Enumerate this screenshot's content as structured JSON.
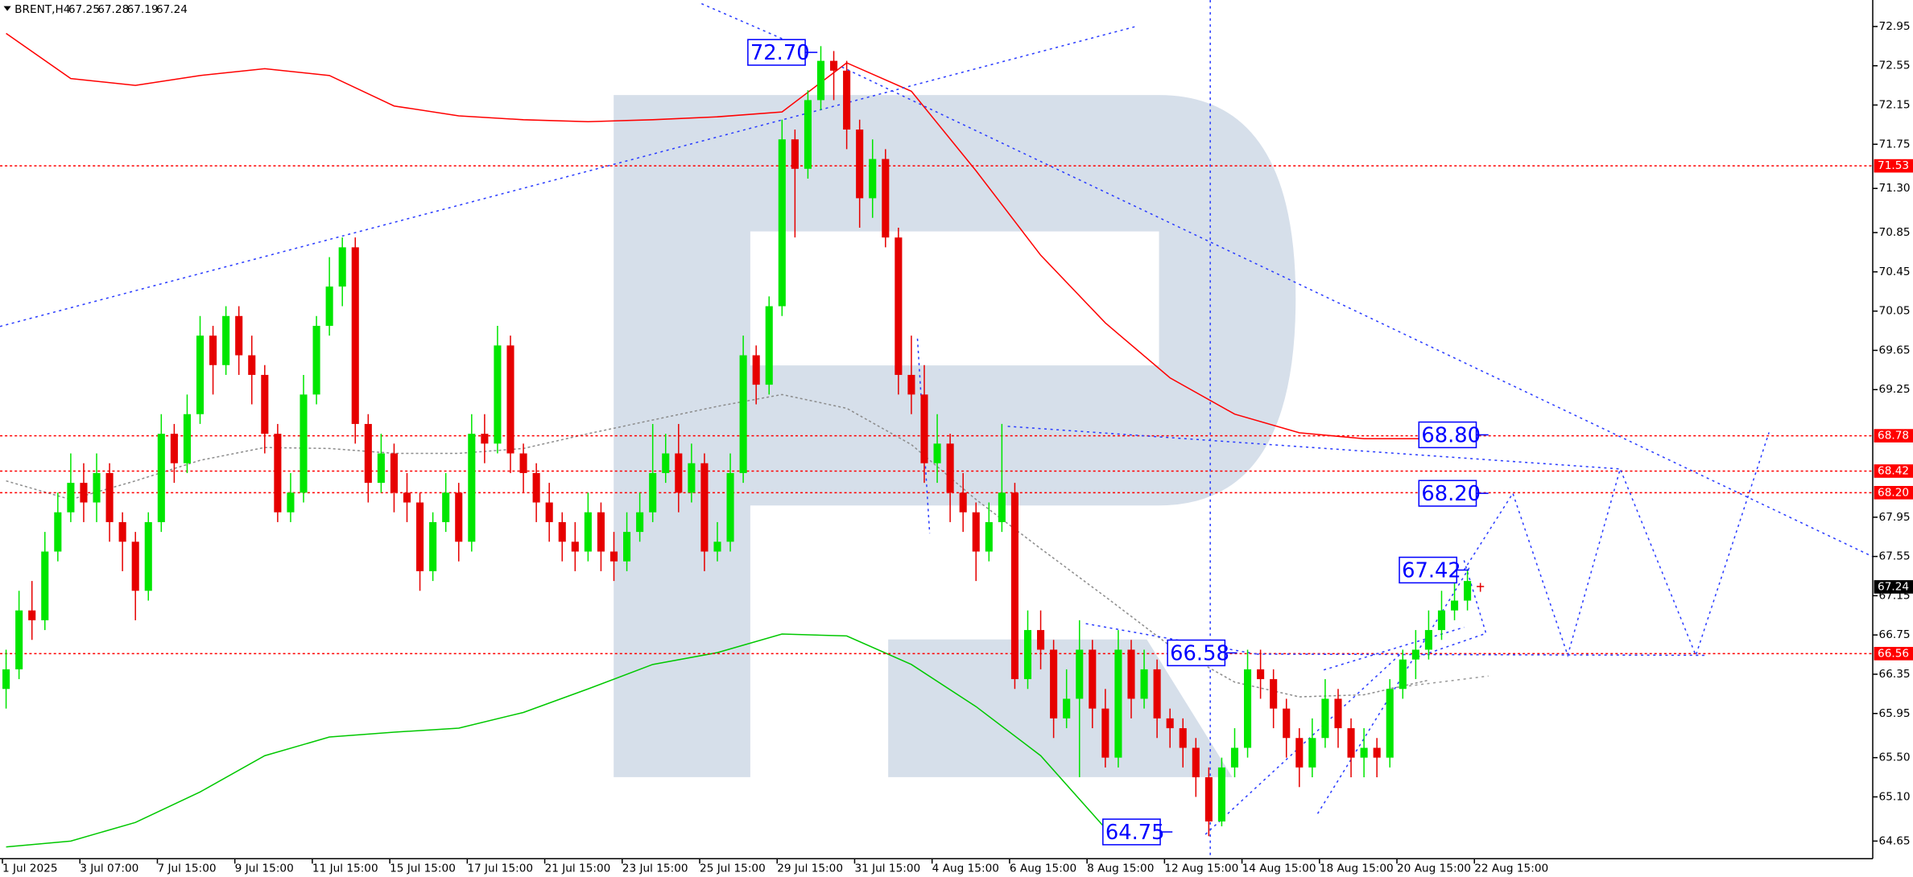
{
  "header": {
    "symbol": "BRENT,H4"
  },
  "chart_data": {
    "type": "candlestick",
    "bull_color": "#00e600",
    "bear_color": "#e60000",
    "open": [
      66.2,
      66.4,
      67.0,
      66.9,
      67.6,
      68.0,
      68.3,
      68.1,
      68.4,
      67.9,
      67.7,
      67.2,
      67.9,
      68.8,
      68.5,
      69.0,
      69.8,
      69.5,
      70.0,
      69.6,
      69.4,
      68.8,
      68.0,
      68.2,
      69.2,
      69.9,
      70.3,
      70.7,
      68.9,
      68.3,
      68.6,
      68.2,
      68.1,
      67.4,
      67.9,
      68.2,
      67.7,
      68.8,
      68.7,
      69.7,
      68.6,
      68.4,
      68.1,
      67.9,
      67.7,
      67.6,
      68.0,
      67.6,
      67.5,
      67.8,
      68.0,
      68.4,
      68.6,
      68.2,
      68.5,
      67.6,
      67.7,
      68.4,
      69.6,
      69.3,
      70.1,
      71.8,
      71.5,
      72.2,
      72.6,
      72.5,
      71.9,
      71.2,
      71.6,
      70.8,
      69.4,
      69.2,
      68.5,
      68.7,
      68.2,
      68.0,
      67.6,
      67.9,
      68.2,
      66.3,
      66.8,
      66.6,
      65.9,
      66.1,
      66.6,
      66.0,
      65.5,
      66.6,
      66.1,
      66.4,
      65.9,
      65.8,
      65.6,
      65.3,
      64.85,
      65.4,
      65.6,
      66.4,
      66.3,
      66.0,
      65.7,
      65.4,
      65.7,
      66.1,
      65.8,
      65.5,
      65.6,
      65.5,
      66.2,
      66.5,
      66.6,
      66.8,
      67.0,
      67.1,
      67.25
    ],
    "high": [
      66.6,
      67.2,
      67.3,
      67.8,
      68.2,
      68.6,
      68.5,
      68.6,
      68.5,
      68.0,
      67.8,
      68.0,
      69.0,
      68.9,
      69.2,
      70.0,
      69.9,
      70.1,
      70.1,
      69.8,
      69.5,
      68.9,
      68.4,
      69.4,
      70.0,
      70.6,
      70.8,
      70.8,
      69.0,
      68.8,
      68.7,
      68.4,
      68.2,
      68.0,
      68.4,
      68.3,
      69.0,
      69.0,
      69.9,
      69.8,
      68.7,
      68.5,
      68.3,
      68.0,
      67.9,
      68.2,
      68.1,
      67.8,
      68.0,
      68.2,
      68.9,
      68.8,
      68.9,
      68.7,
      68.6,
      67.9,
      68.6,
      69.8,
      69.7,
      70.2,
      72.0,
      71.9,
      72.3,
      72.75,
      72.7,
      72.6,
      72.0,
      71.8,
      71.7,
      70.9,
      69.8,
      69.5,
      69.0,
      68.8,
      68.4,
      68.1,
      68.1,
      68.9,
      68.3,
      67.0,
      67.0,
      66.7,
      66.4,
      66.9,
      66.7,
      66.2,
      66.8,
      66.7,
      66.6,
      66.5,
      66.0,
      65.9,
      65.7,
      65.4,
      65.5,
      65.8,
      66.6,
      66.6,
      66.4,
      66.1,
      65.8,
      65.9,
      66.3,
      66.2,
      65.9,
      65.8,
      65.7,
      66.3,
      66.6,
      66.8,
      67.0,
      67.2,
      67.3,
      67.42,
      67.28
    ],
    "low": [
      66.0,
      66.3,
      66.7,
      66.8,
      67.5,
      67.9,
      67.9,
      67.9,
      67.7,
      67.4,
      66.9,
      67.1,
      67.8,
      68.3,
      68.4,
      68.9,
      69.2,
      69.4,
      69.4,
      69.1,
      68.6,
      67.9,
      67.9,
      68.1,
      69.1,
      69.8,
      70.1,
      68.7,
      68.1,
      68.2,
      68.0,
      67.9,
      67.2,
      67.3,
      67.8,
      67.5,
      67.6,
      68.5,
      68.6,
      68.4,
      68.2,
      67.9,
      67.7,
      67.5,
      67.4,
      67.5,
      67.4,
      67.3,
      67.4,
      67.7,
      67.9,
      68.3,
      68.0,
      68.1,
      67.4,
      67.5,
      67.6,
      68.3,
      69.1,
      69.2,
      70.0,
      70.8,
      71.4,
      72.1,
      72.2,
      71.7,
      70.9,
      71.0,
      70.7,
      69.2,
      69.0,
      68.3,
      68.3,
      67.9,
      67.8,
      67.3,
      67.5,
      67.8,
      66.2,
      66.2,
      66.4,
      65.7,
      65.8,
      65.3,
      65.8,
      65.4,
      65.4,
      65.9,
      66.0,
      65.7,
      65.6,
      65.4,
      65.1,
      64.7,
      64.8,
      65.3,
      65.5,
      66.1,
      65.8,
      65.5,
      65.2,
      65.3,
      65.6,
      65.6,
      65.3,
      65.3,
      65.3,
      65.4,
      66.1,
      66.3,
      66.5,
      66.7,
      66.9,
      67.0,
      67.19
    ],
    "close": [
      66.4,
      67.0,
      66.9,
      67.6,
      68.0,
      68.3,
      68.1,
      68.4,
      67.9,
      67.7,
      67.2,
      67.9,
      68.8,
      68.5,
      69.0,
      69.8,
      69.5,
      70.0,
      69.6,
      69.4,
      68.8,
      68.0,
      68.2,
      69.2,
      69.9,
      70.3,
      70.7,
      68.9,
      68.3,
      68.6,
      68.2,
      68.1,
      67.4,
      67.9,
      68.2,
      67.7,
      68.8,
      68.7,
      69.7,
      68.6,
      68.4,
      68.1,
      67.9,
      67.7,
      67.6,
      68.0,
      67.6,
      67.5,
      67.8,
      68.0,
      68.4,
      68.6,
      68.2,
      68.5,
      67.6,
      67.7,
      68.4,
      69.6,
      69.3,
      70.1,
      71.8,
      71.5,
      72.2,
      72.6,
      72.5,
      71.9,
      71.2,
      71.6,
      70.8,
      69.4,
      69.2,
      68.5,
      68.7,
      68.2,
      68.0,
      67.6,
      67.9,
      68.2,
      66.3,
      66.8,
      66.6,
      65.9,
      66.1,
      66.6,
      66.0,
      65.5,
      66.6,
      66.1,
      66.4,
      65.9,
      65.8,
      65.6,
      65.3,
      64.85,
      65.4,
      65.6,
      66.4,
      66.3,
      66.0,
      65.7,
      65.4,
      65.7,
      66.1,
      65.8,
      65.5,
      65.6,
      65.5,
      66.2,
      66.5,
      66.6,
      66.8,
      67.0,
      67.1,
      67.3,
      67.24
    ],
    "x_labels": [
      "1 Jul 2025",
      "3 Jul 07:00",
      "7 Jul 15:00",
      "9 Jul 15:00",
      "11 Jul 15:00",
      "15 Jul 15:00",
      "17 Jul 15:00",
      "21 Jul 15:00",
      "23 Jul 15:00",
      "25 Jul 15:00",
      "29 Jul 15:00",
      "31 Jul 15:00",
      "4 Aug 15:00",
      "6 Aug 15:00",
      "8 Aug 15:00",
      "12 Aug 15:00",
      "14 Aug 15:00",
      "18 Aug 15:00",
      "20 Aug 15:00",
      "22 Aug 15:00"
    ],
    "ylim": [
      64.47,
      73.22
    ],
    "yticks": [
      72.95,
      72.55,
      72.15,
      71.75,
      {
        "value": 71.3,
        "label": "71.30"
      },
      70.85,
      70.45,
      70.05,
      69.65,
      69.25,
      67.95,
      67.55,
      67.15,
      66.75,
      66.35,
      65.95,
      {
        "value": 65.5,
        "label": "65.50"
      },
      {
        "value": 65.1,
        "label": "65.10"
      },
      64.65
    ],
    "levels": [
      {
        "value": 71.53,
        "color": "#ff0000"
      },
      {
        "value": 68.78,
        "color": "#ff0000"
      },
      {
        "value": 68.42,
        "color": "#ff0000"
      },
      {
        "value": 68.2,
        "label": "68.20",
        "color": "#ff0000"
      },
      {
        "value": 66.56,
        "color": "#ff0000"
      }
    ],
    "current_color": "#000000",
    "annotations": [
      "72.70",
      "68.80",
      "68.20",
      "67.42",
      "66.58",
      "64.75"
    ],
    "indicators": [
      {
        "color": "#ff0000",
        "values": [
          72.88,
          72.42,
          72.35,
          72.45,
          72.52,
          72.45,
          72.14,
          72.04,
          72.0,
          71.98,
          72.0,
          72.03,
          72.08,
          72.58,
          72.29,
          71.48,
          70.62,
          69.93,
          69.37,
          69.0,
          68.81,
          68.75,
          68.75
        ]
      },
      {
        "color": "#00c800",
        "values": [
          64.59,
          64.65,
          64.84,
          65.15,
          65.52,
          65.71,
          65.76,
          65.8,
          65.96,
          66.2,
          66.45,
          66.57,
          66.76,
          66.74,
          66.45,
          66.02,
          65.52,
          64.78,
          null,
          null,
          null,
          null,
          null
        ]
      },
      {
        "color": "#8c8c8c",
        "values": [
          68.32,
          68.13,
          68.32,
          68.53,
          68.66,
          68.65,
          68.6,
          68.6,
          68.65,
          68.8,
          68.94,
          69.08,
          69.2,
          69.06,
          68.69,
          68.13,
          67.63,
          67.14,
          66.64,
          66.27,
          66.12,
          66.14,
          66.29
        ]
      }
    ]
  }
}
